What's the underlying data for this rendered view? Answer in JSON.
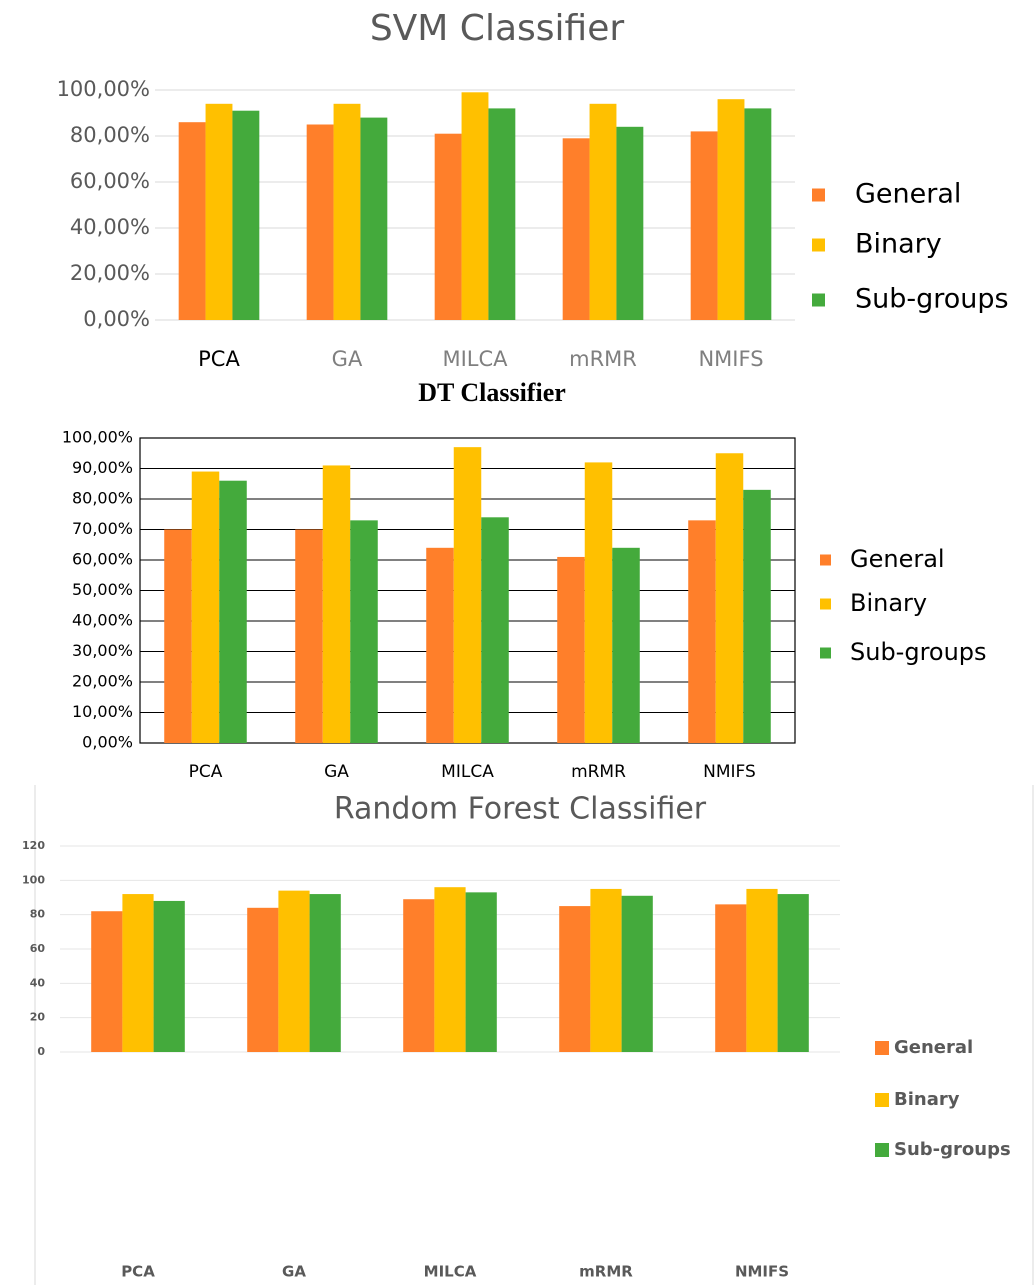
{
  "chart_data": [
    {
      "type": "bar",
      "title": "SVM Classifier",
      "categories": [
        "PCA",
        "GA",
        "MILCA",
        "mRMR",
        "NMIFS"
      ],
      "series": [
        {
          "name": "General",
          "color": "#FF7F2A",
          "values": [
            86,
            85,
            81,
            79,
            82
          ]
        },
        {
          "name": "Binary",
          "color": "#FFC000",
          "values": [
            94,
            94,
            99,
            94,
            96
          ]
        },
        {
          "name": "Sub-groups",
          "color": "#44AA3C",
          "values": [
            91,
            88,
            92,
            84,
            92
          ]
        }
      ],
      "ylim": [
        0,
        100
      ],
      "yticks": [
        {
          "value": 0,
          "label": "0,00%"
        },
        {
          "value": 20,
          "label": "20,00%"
        },
        {
          "value": 40,
          "label": "40,00%"
        },
        {
          "value": 60,
          "label": "60,00%"
        },
        {
          "value": 80,
          "label": "80,00%"
        },
        {
          "value": 100,
          "label": "100,00%"
        }
      ],
      "grid": true,
      "legend": "right"
    },
    {
      "type": "bar",
      "title": "DT Classifier",
      "categories": [
        "PCA",
        "GA",
        "MILCA",
        "mRMR",
        "NMIFS"
      ],
      "series": [
        {
          "name": "General",
          "color": "#FF7F2A",
          "values": [
            70,
            70,
            64,
            61,
            73
          ]
        },
        {
          "name": "Binary",
          "color": "#FFC000",
          "values": [
            89,
            91,
            97,
            92,
            95
          ]
        },
        {
          "name": "Sub-groups",
          "color": "#44AA3C",
          "values": [
            86,
            73,
            74,
            64,
            83
          ]
        }
      ],
      "ylim": [
        0,
        100
      ],
      "yticks": [
        {
          "value": 0,
          "label": "0,00%"
        },
        {
          "value": 10,
          "label": "10,00%"
        },
        {
          "value": 20,
          "label": "20,00%"
        },
        {
          "value": 30,
          "label": "30,00%"
        },
        {
          "value": 40,
          "label": "40,00%"
        },
        {
          "value": 50,
          "label": "50,00%"
        },
        {
          "value": 60,
          "label": "60,00%"
        },
        {
          "value": 70,
          "label": "70,00%"
        },
        {
          "value": 80,
          "label": "80,00%"
        },
        {
          "value": 90,
          "label": "90,00%"
        },
        {
          "value": 100,
          "label": "100,00%"
        }
      ],
      "grid": true,
      "legend": "right"
    },
    {
      "type": "bar",
      "title": "Random Forest Classifier",
      "categories": [
        "PCA",
        "GA",
        "MILCA",
        "mRMR",
        "NMIFS"
      ],
      "series": [
        {
          "name": "General",
          "color": "#FF7F2A",
          "values": [
            82,
            84,
            89,
            85,
            86
          ]
        },
        {
          "name": "Binary",
          "color": "#FFC000",
          "values": [
            92,
            94,
            96,
            95,
            95
          ]
        },
        {
          "name": "Sub-groups",
          "color": "#44AA3C",
          "values": [
            88,
            92,
            93,
            91,
            92
          ]
        }
      ],
      "ylim": [
        0,
        120
      ],
      "yticks": [
        0,
        20,
        40,
        60,
        80,
        100,
        120
      ],
      "grid": true,
      "legend": "right"
    }
  ]
}
